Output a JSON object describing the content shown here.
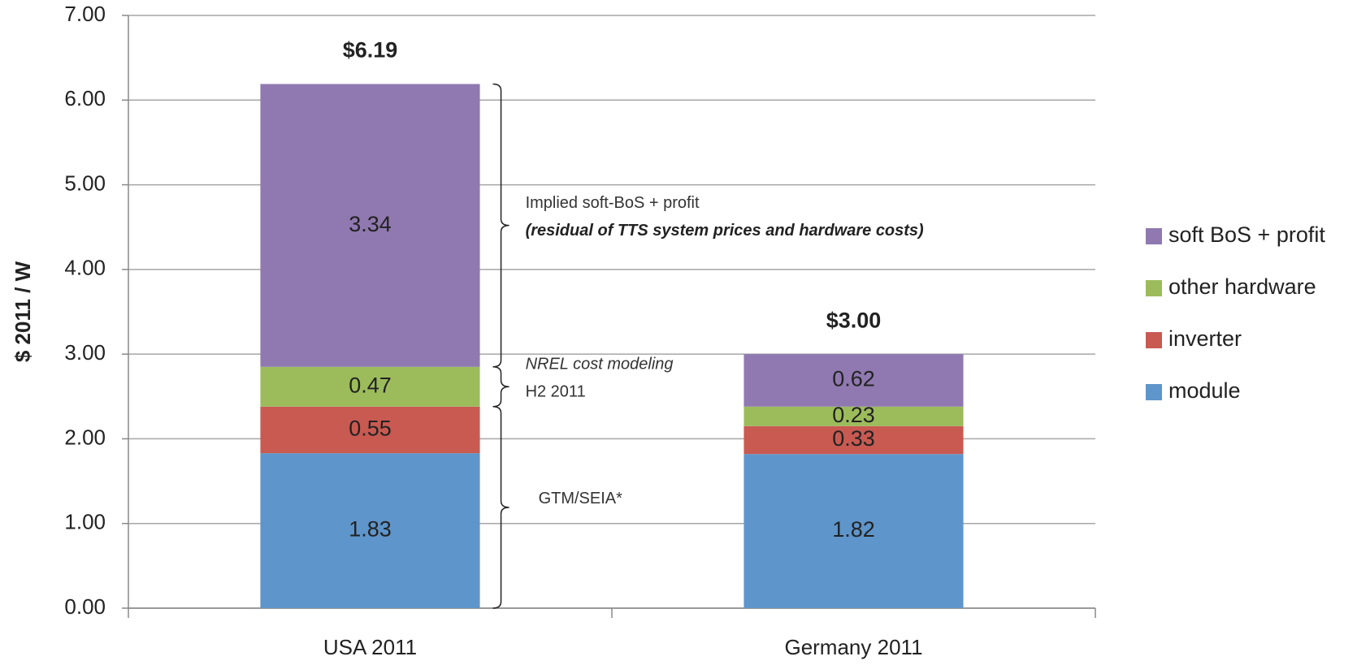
{
  "chart_data": {
    "type": "stacked_bar",
    "y_label": "$ 2011 / W",
    "categories": [
      "USA 2011",
      "Germany 2011"
    ],
    "series": [
      {
        "name": "module",
        "color": "#5e95ca",
        "values": [
          1.83,
          1.82
        ]
      },
      {
        "name": "inverter",
        "color": "#c85a52",
        "values": [
          0.55,
          0.33
        ]
      },
      {
        "name": "other hardware",
        "color": "#9cbc5c",
        "values": [
          0.47,
          0.23
        ]
      },
      {
        "name": "soft BoS + profit",
        "color": "#9079b0",
        "values": [
          3.34,
          0.62
        ]
      }
    ],
    "totals": [
      6.19,
      3.0
    ],
    "total_labels": [
      "$6.19",
      "$3.00"
    ],
    "annotations": [
      {
        "lines": [
          "Implied soft-BoS + profit",
          "(residual of TTS system prices and hardware costs)"
        ]
      },
      {
        "lines": [
          "NREL cost modeling",
          "H2 2011"
        ]
      },
      {
        "lines": [
          "GTM/SEIA*"
        ]
      }
    ],
    "ylim": [
      0,
      7
    ],
    "yticks": [
      {
        "value": 0,
        "label": "0.00"
      },
      {
        "value": 1,
        "label": "1.00"
      },
      {
        "value": 2,
        "label": "2.00"
      },
      {
        "value": 3,
        "label": "3.00"
      },
      {
        "value": 4,
        "label": "4.00"
      },
      {
        "value": 5,
        "label": "5.00"
      },
      {
        "value": 6,
        "label": "6.00"
      },
      {
        "value": 7,
        "label": "7.00"
      }
    ],
    "grid": true,
    "legend": "right"
  }
}
